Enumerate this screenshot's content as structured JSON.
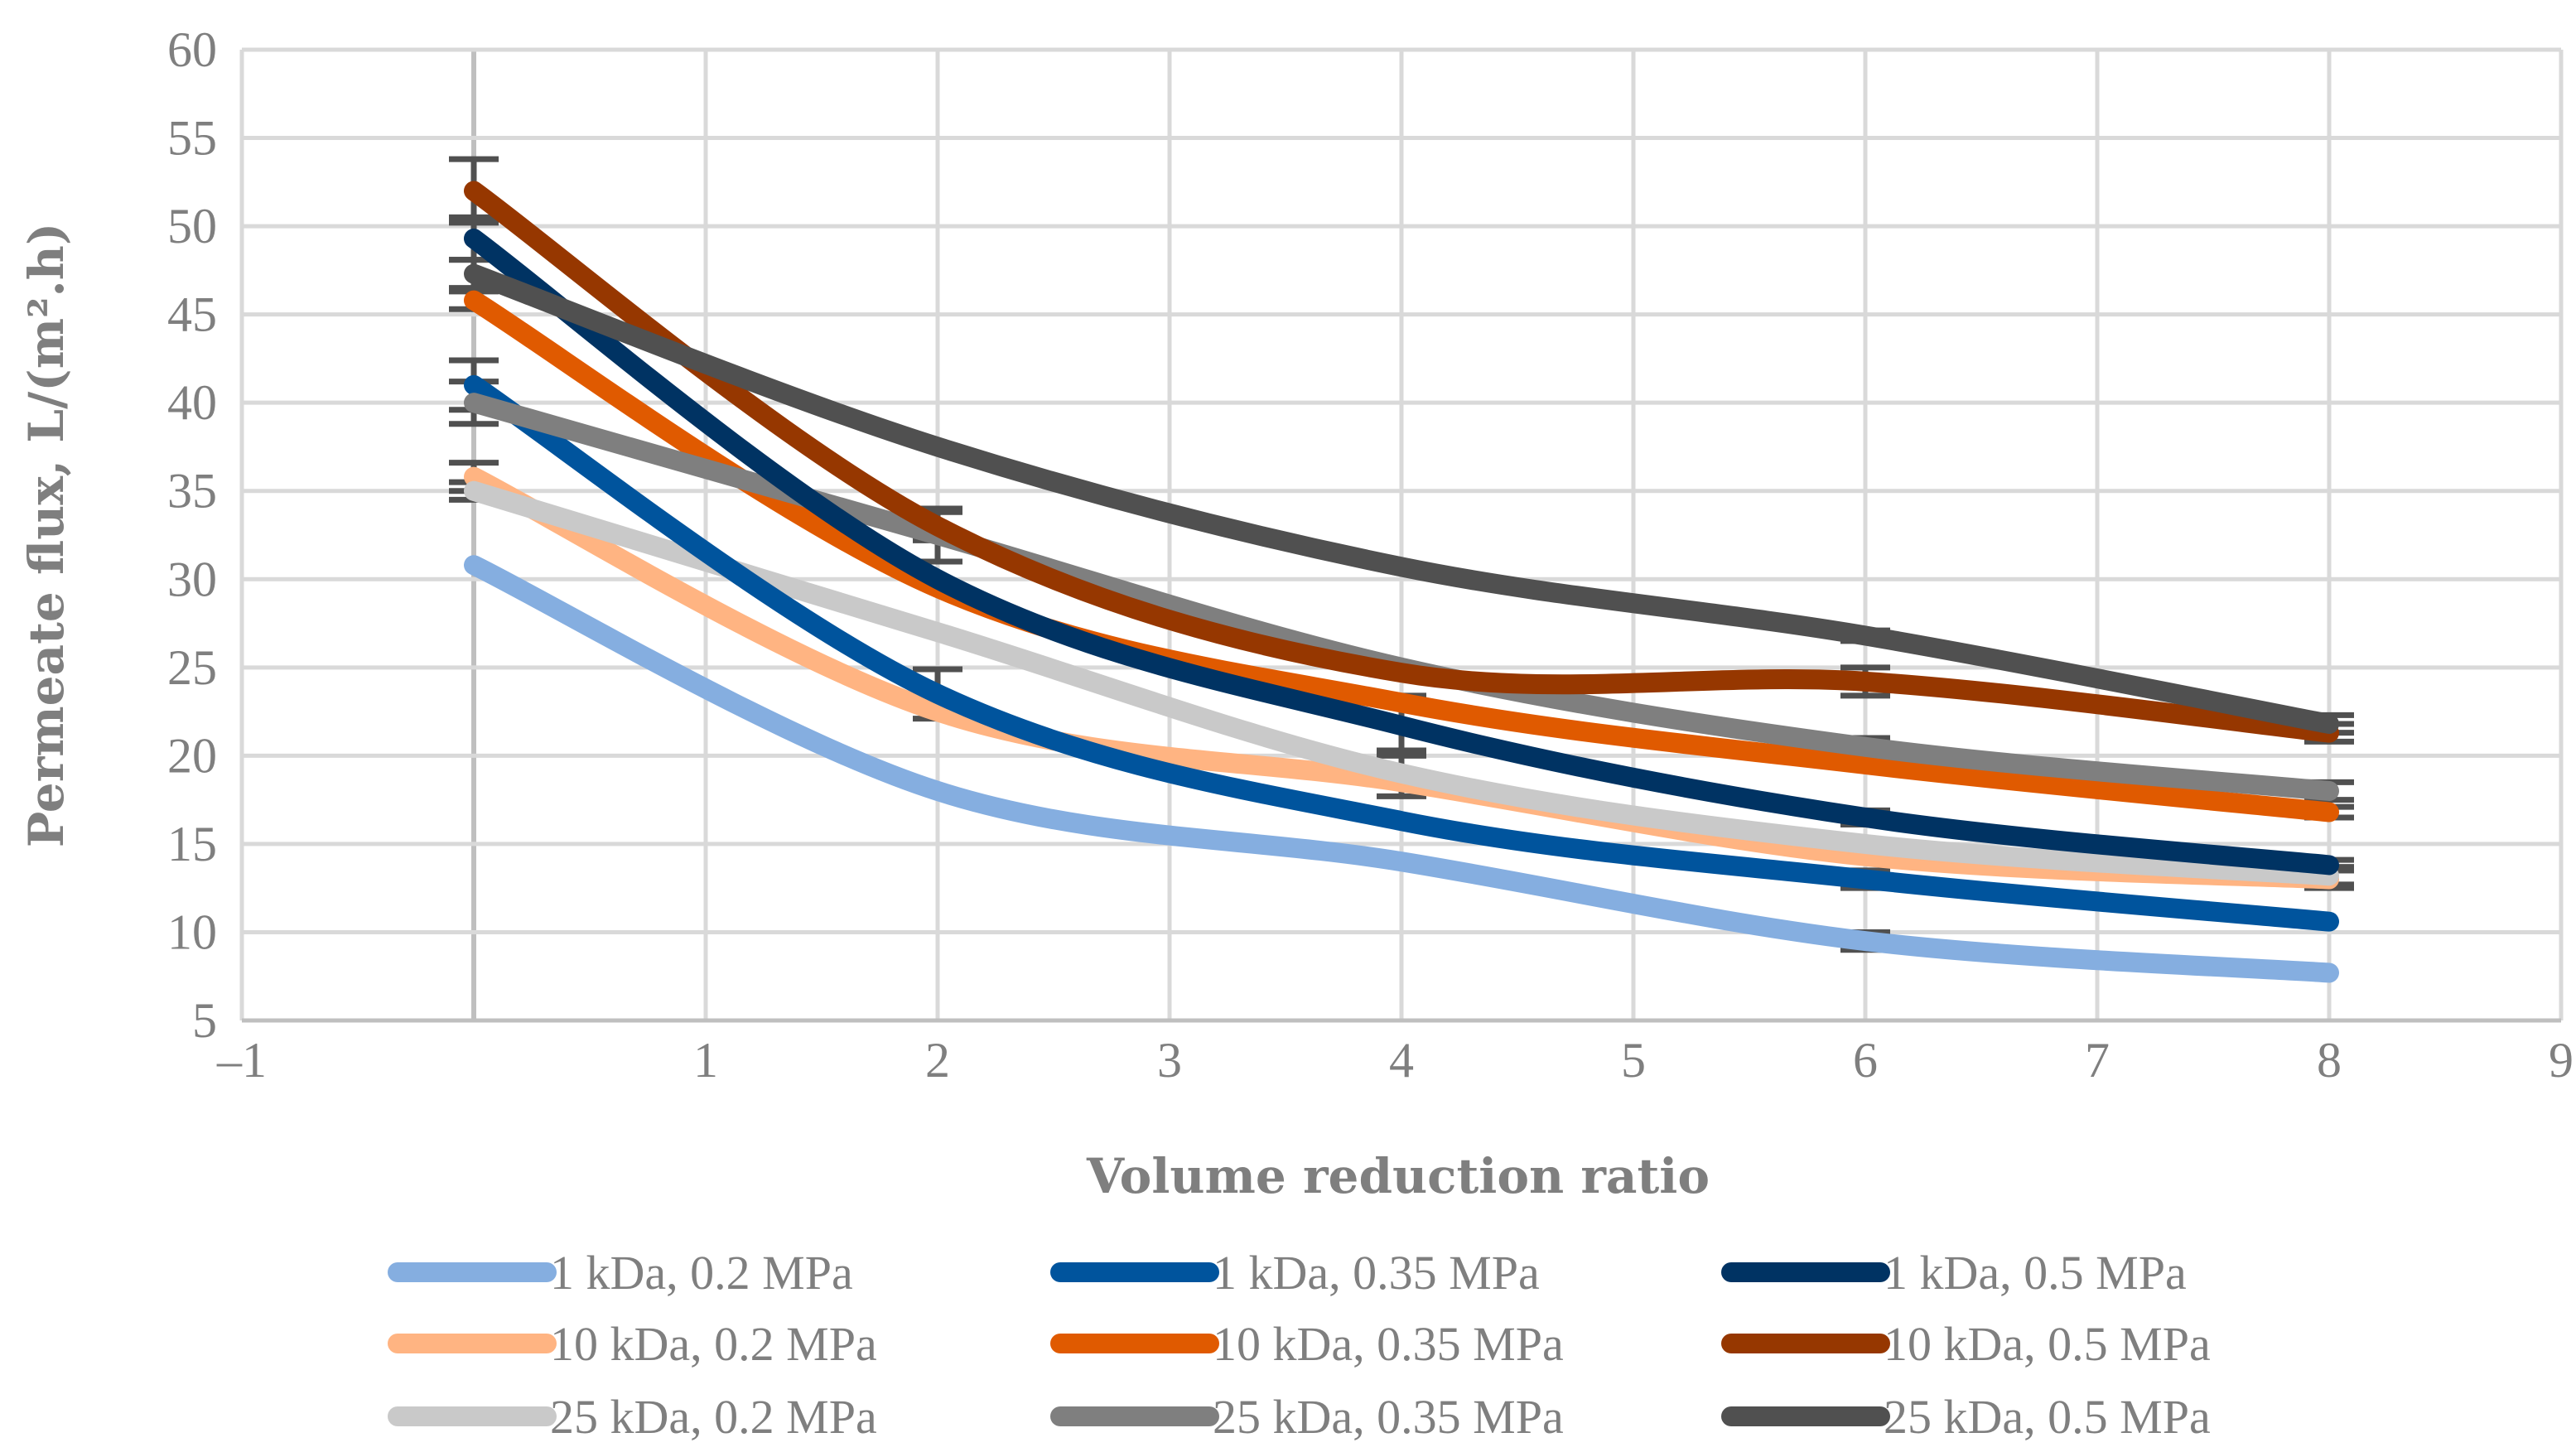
{
  "chart_data": {
    "type": "line",
    "title": "",
    "xlabel": "Volume reduction ratio",
    "ylabel": "Permeate flux, L/(m².h)",
    "xlim": [
      -1,
      9
    ],
    "ylim": [
      5,
      60
    ],
    "grid": true,
    "legend_position": "bottom",
    "x_ticks": [
      {
        "value": -1,
        "label": "–1"
      },
      {
        "value": 1,
        "label": "1"
      },
      {
        "value": 2,
        "label": "2"
      },
      {
        "value": 3,
        "label": "3"
      },
      {
        "value": 4,
        "label": "4"
      },
      {
        "value": 5,
        "label": "5"
      },
      {
        "value": 6,
        "label": "6"
      },
      {
        "value": 7,
        "label": "7"
      },
      {
        "value": 8,
        "label": "8"
      },
      {
        "value": 9,
        "label": "9"
      }
    ],
    "y_ticks": [
      "5",
      "10",
      "15",
      "20",
      "25",
      "30",
      "35",
      "40",
      "45",
      "50",
      "55",
      "60"
    ],
    "x": [
      0,
      2,
      4,
      6,
      8
    ],
    "series": [
      {
        "name": "1 kDa, 0.2 MPa",
        "color": "#85aee0",
        "values": [
          30.8,
          18.0,
          14.0,
          9.5,
          7.7
        ],
        "errors": [
          0,
          0,
          0,
          0.5,
          0
        ]
      },
      {
        "name": "10 kDa, 0.2 MPa",
        "color": "#ffb482",
        "values": [
          35.8,
          22.5,
          18.5,
          14.3,
          13.0
        ],
        "errors": [
          0.8,
          0,
          0,
          0,
          0.5
        ]
      },
      {
        "name": "25 kDa, 0.2 MPa",
        "color": "#c9c9c9",
        "values": [
          35.0,
          27.0,
          19.0,
          15.0,
          13.2
        ],
        "errors": [
          0.5,
          0,
          1.3,
          0,
          0.5
        ]
      },
      {
        "name": "1 kDa, 0.35 MPa",
        "color": "#00549d",
        "values": [
          41.0,
          23.5,
          16.3,
          13.0,
          10.6
        ],
        "errors": [
          1.4,
          1.4,
          0,
          0.5,
          0
        ]
      },
      {
        "name": "10 kDa, 0.35 MPa",
        "color": "#e05a00",
        "values": [
          45.8,
          29.5,
          23.0,
          19.5,
          16.8
        ],
        "errors": [
          0.5,
          0,
          0,
          0,
          0.3
        ]
      },
      {
        "name": "25 kDa, 0.35 MPa",
        "color": "#7f7f7f",
        "values": [
          40.0,
          32.5,
          25.0,
          20.5,
          18.0
        ],
        "errors": [
          1.2,
          1.5,
          0,
          0.5,
          0.5
        ]
      },
      {
        "name": "1 kDa, 0.5 MPa",
        "color": "#003363",
        "values": [
          49.3,
          30.0,
          21.7,
          16.5,
          13.8
        ],
        "errors": [
          1.2,
          0,
          1.7,
          0.4,
          0.3
        ]
      },
      {
        "name": "10 kDa, 0.5 MPa",
        "color": "#963700",
        "values": [
          52.0,
          33.0,
          24.7,
          24.2,
          21.3
        ],
        "errors": [
          1.8,
          0.8,
          0,
          0.8,
          0.5
        ]
      },
      {
        "name": "25 kDa, 0.5 MPa",
        "color": "#505050",
        "values": [
          47.3,
          37.5,
          30.7,
          26.8,
          21.8
        ],
        "errors": [
          0.8,
          0,
          0,
          0.3,
          0.5
        ]
      }
    ]
  }
}
